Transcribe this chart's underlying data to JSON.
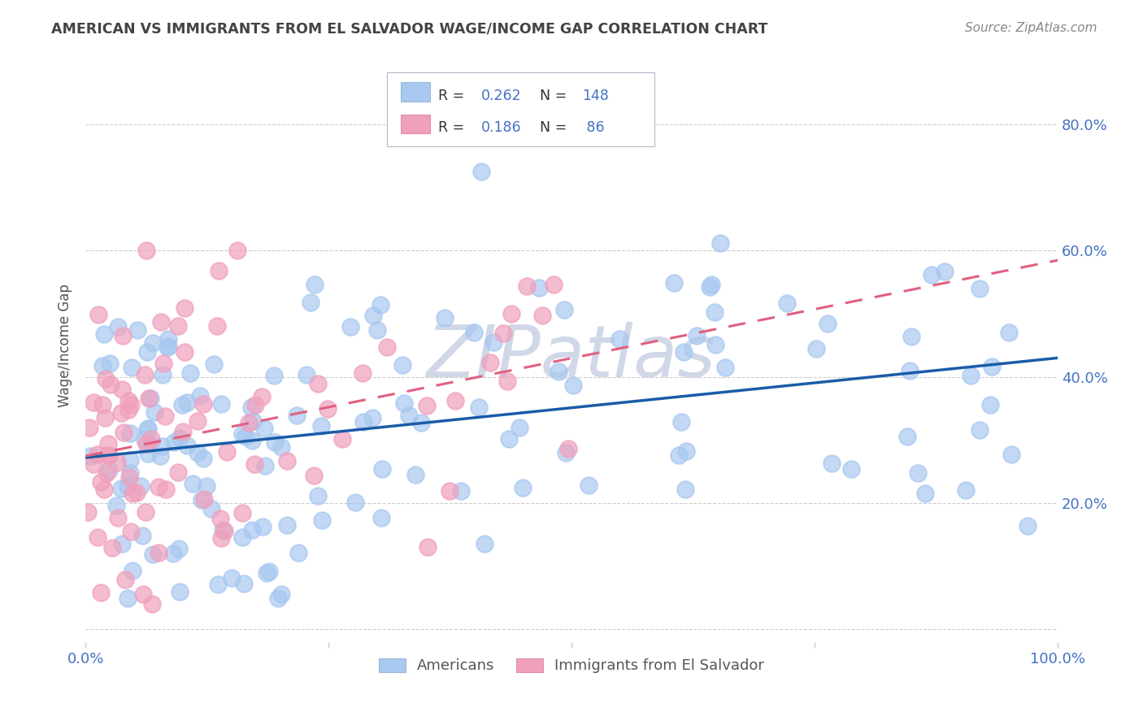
{
  "title": "AMERICAN VS IMMIGRANTS FROM EL SALVADOR WAGE/INCOME GAP CORRELATION CHART",
  "source": "Source: ZipAtlas.com",
  "ylabel": "Wage/Income Gap",
  "xlabel": "",
  "american_R": 0.262,
  "american_N": 148,
  "immigrant_R": 0.186,
  "immigrant_N": 86,
  "american_color": "#a8c8f0",
  "immigrant_color": "#f0a0bc",
  "american_line_color": "#1a5ca8",
  "immigrant_line_color": "#e06080",
  "background_color": "#ffffff",
  "grid_color": "#cccccc",
  "title_color": "#444444",
  "tick_color": "#4472c4",
  "watermark": "ZIPatlas",
  "watermark_color": "#d0d8e8",
  "legend_text_color": "#333333",
  "legend_val_color": "#4472c4",
  "axis_label_color": "#555555"
}
